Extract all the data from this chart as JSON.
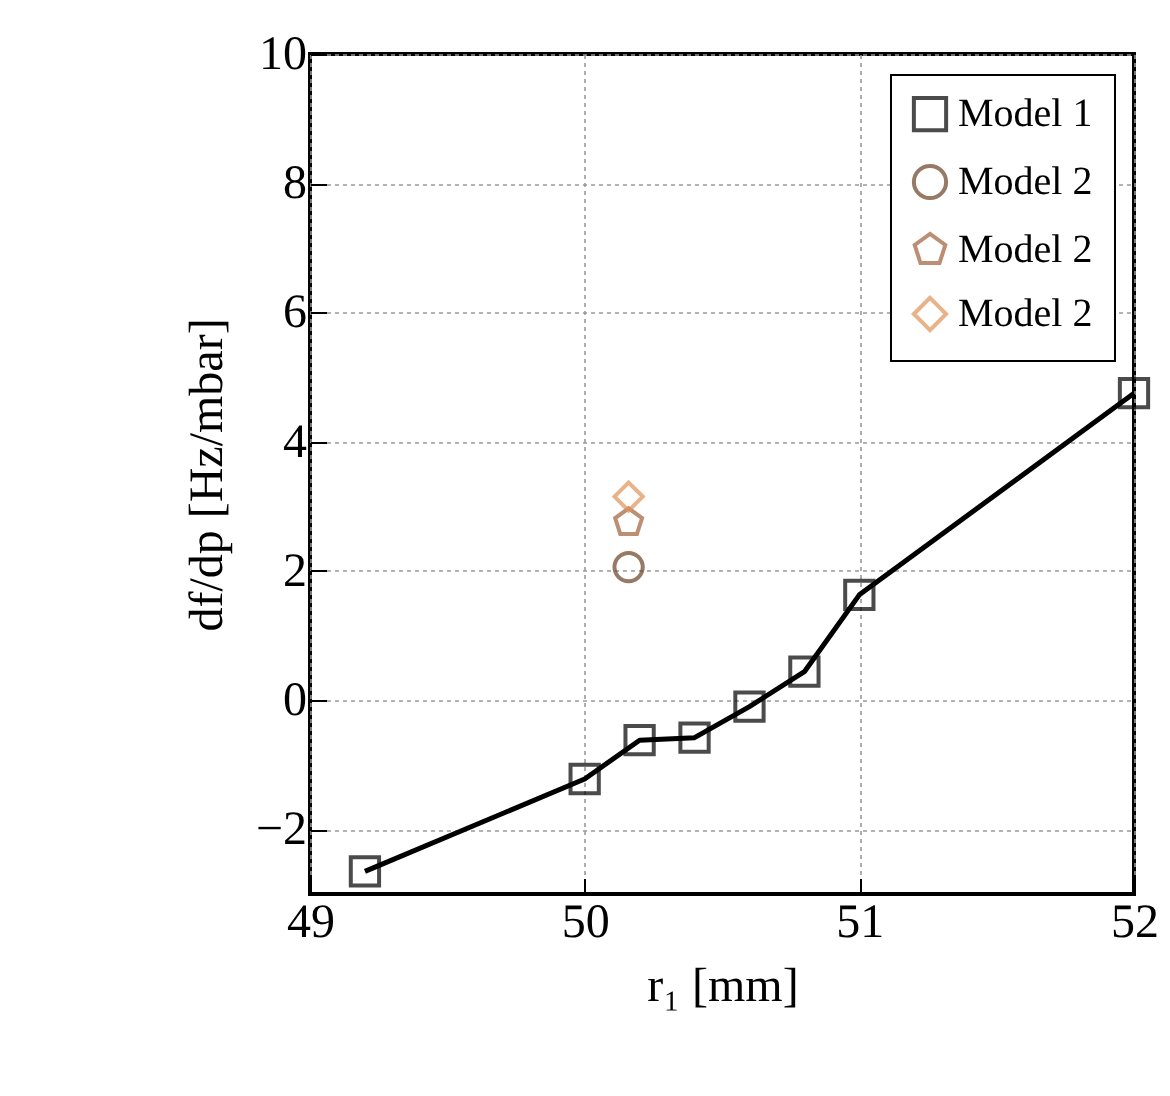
{
  "chart_data": {
    "type": "line",
    "xlabel": "r₁ [mm]",
    "ylabel": "df/dp [Hz/mbar]",
    "xlim": [
      49,
      52
    ],
    "xticks": [
      49,
      50,
      51,
      52
    ],
    "ylim": [
      -3,
      10
    ],
    "yticks": [
      -2,
      0,
      2,
      4,
      6,
      8,
      10
    ],
    "grid": true,
    "legend": "top right",
    "series": [
      {
        "name": "Model 1",
        "marker": "square",
        "line_style": "solid",
        "color": "#000000",
        "x": [
          49.2,
          50.0,
          50.2,
          50.4,
          50.6,
          50.8,
          51.0,
          52.0
        ],
        "values": [
          -2.65,
          -1.22,
          -0.62,
          -0.58,
          -0.1,
          0.44,
          1.63,
          4.75
        ]
      },
      {
        "name": "Model 2",
        "type": "scatter",
        "marker": "circle",
        "color": "#6b4226",
        "x": [
          50.16
        ],
        "values": [
          2.06
        ]
      },
      {
        "name": "Model 2",
        "type": "scatter",
        "color": "#a0603a",
        "x": [
          50.16
        ],
        "values": [
          2.75
        ]
      },
      {
        "name": "Model 2",
        "type": "scatter",
        "marker": "diamond",
        "color": "#e0935a",
        "x": [
          50.16
        ],
        "values": [
          3.15
        ]
      }
    ]
  }
}
